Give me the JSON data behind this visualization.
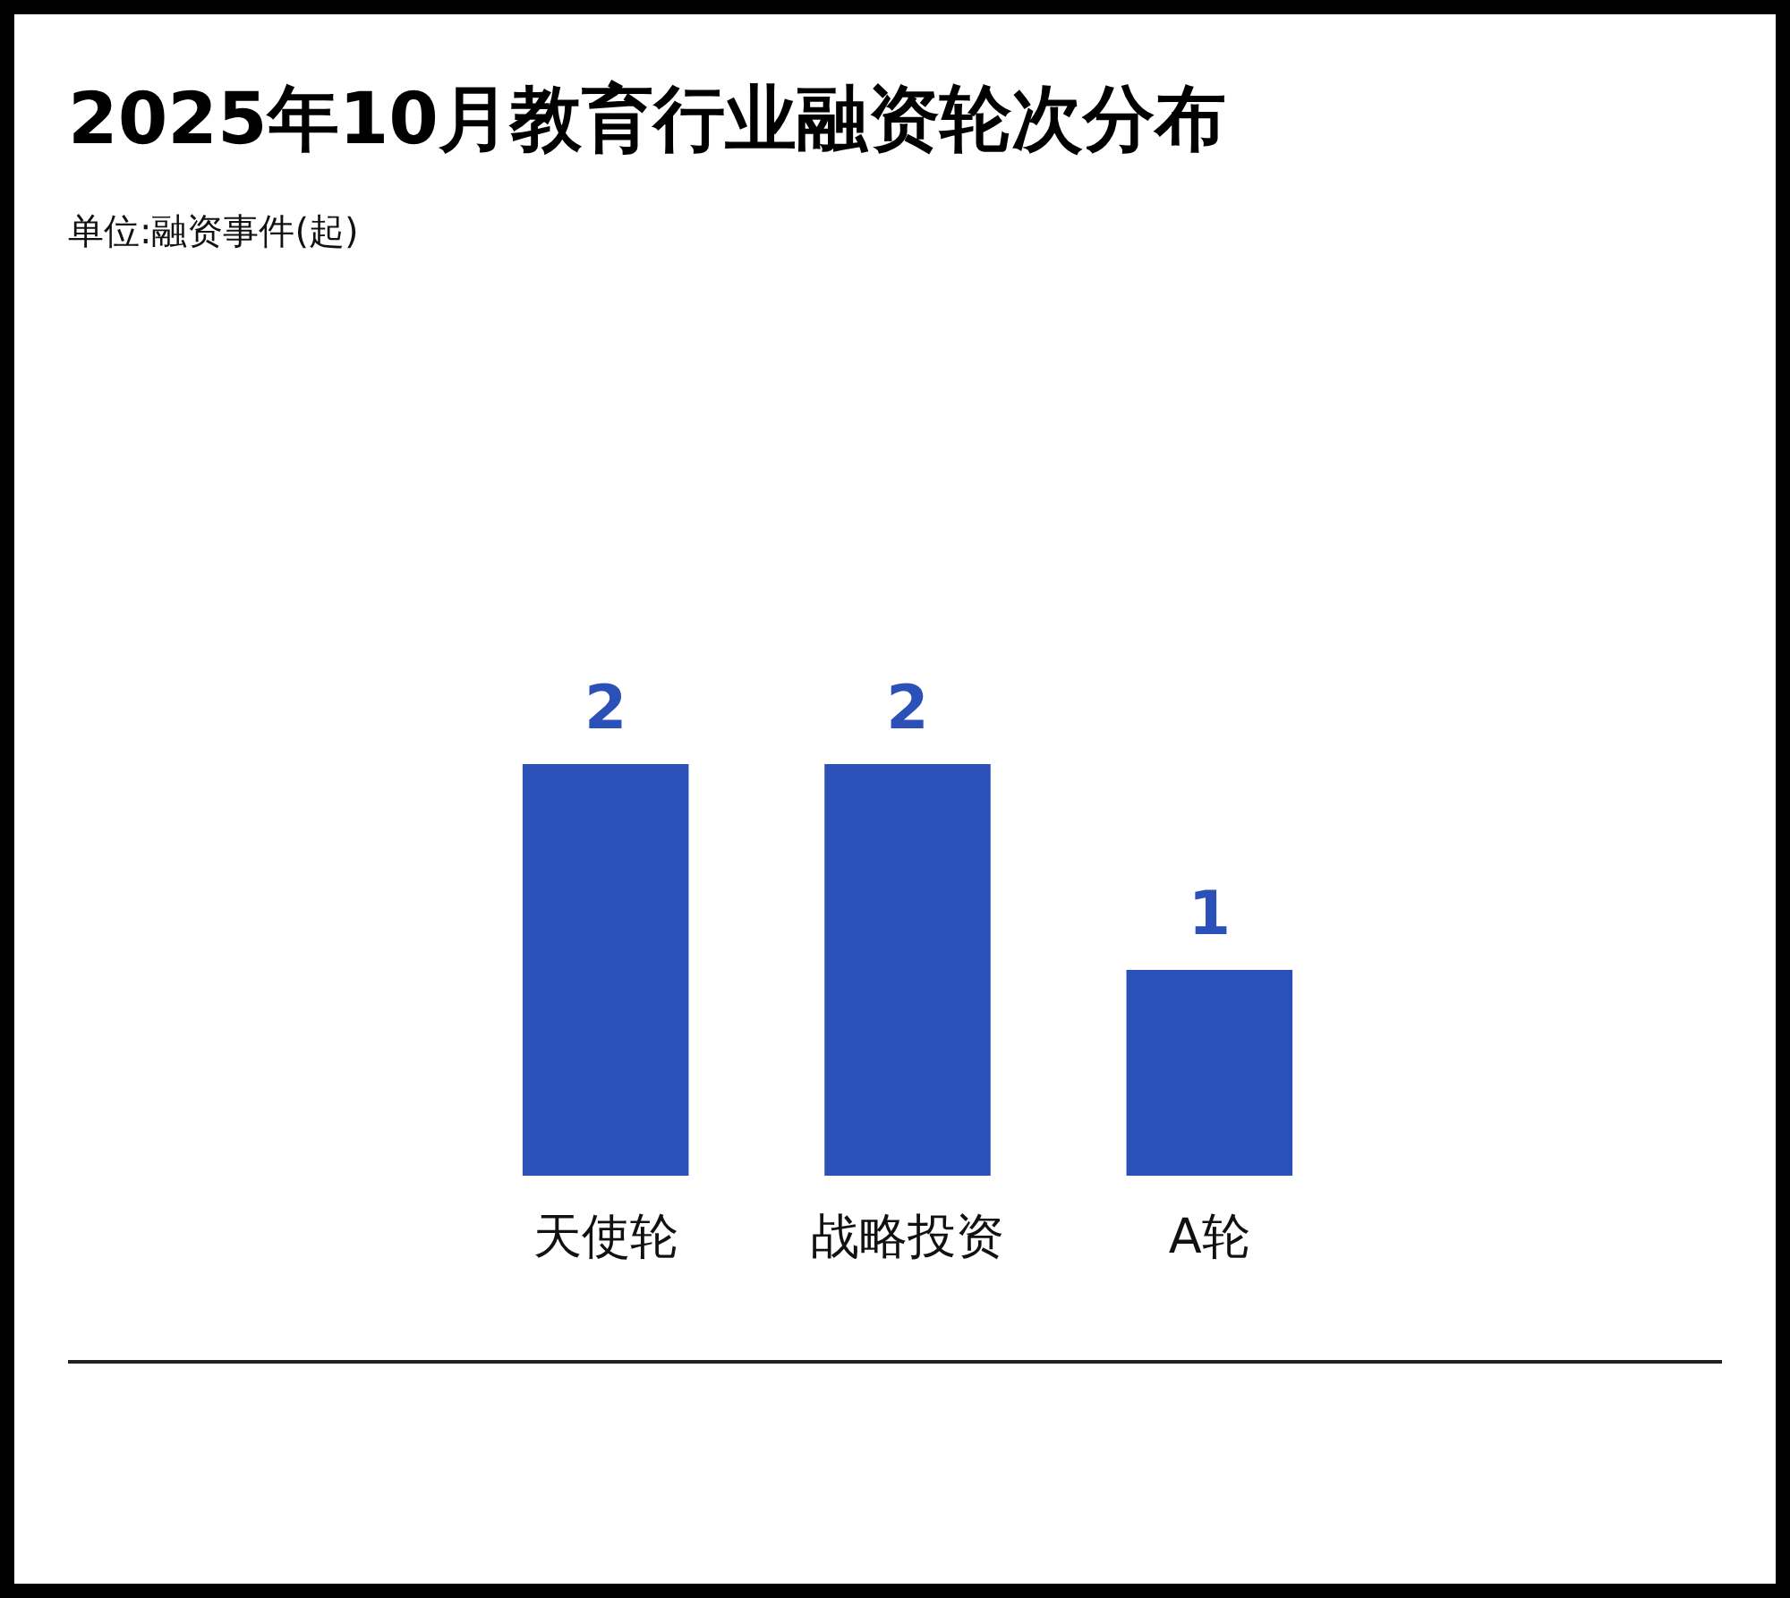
{
  "chart_data": {
    "type": "bar",
    "title": "2025年10月教育行业融资轮次分布",
    "subtitle": "单位:融资事件(起)",
    "categories": [
      "天使轮",
      "战略投资",
      "A轮"
    ],
    "values": [
      2,
      2,
      1
    ],
    "color": "#2b50b8",
    "data_labels": true
  }
}
